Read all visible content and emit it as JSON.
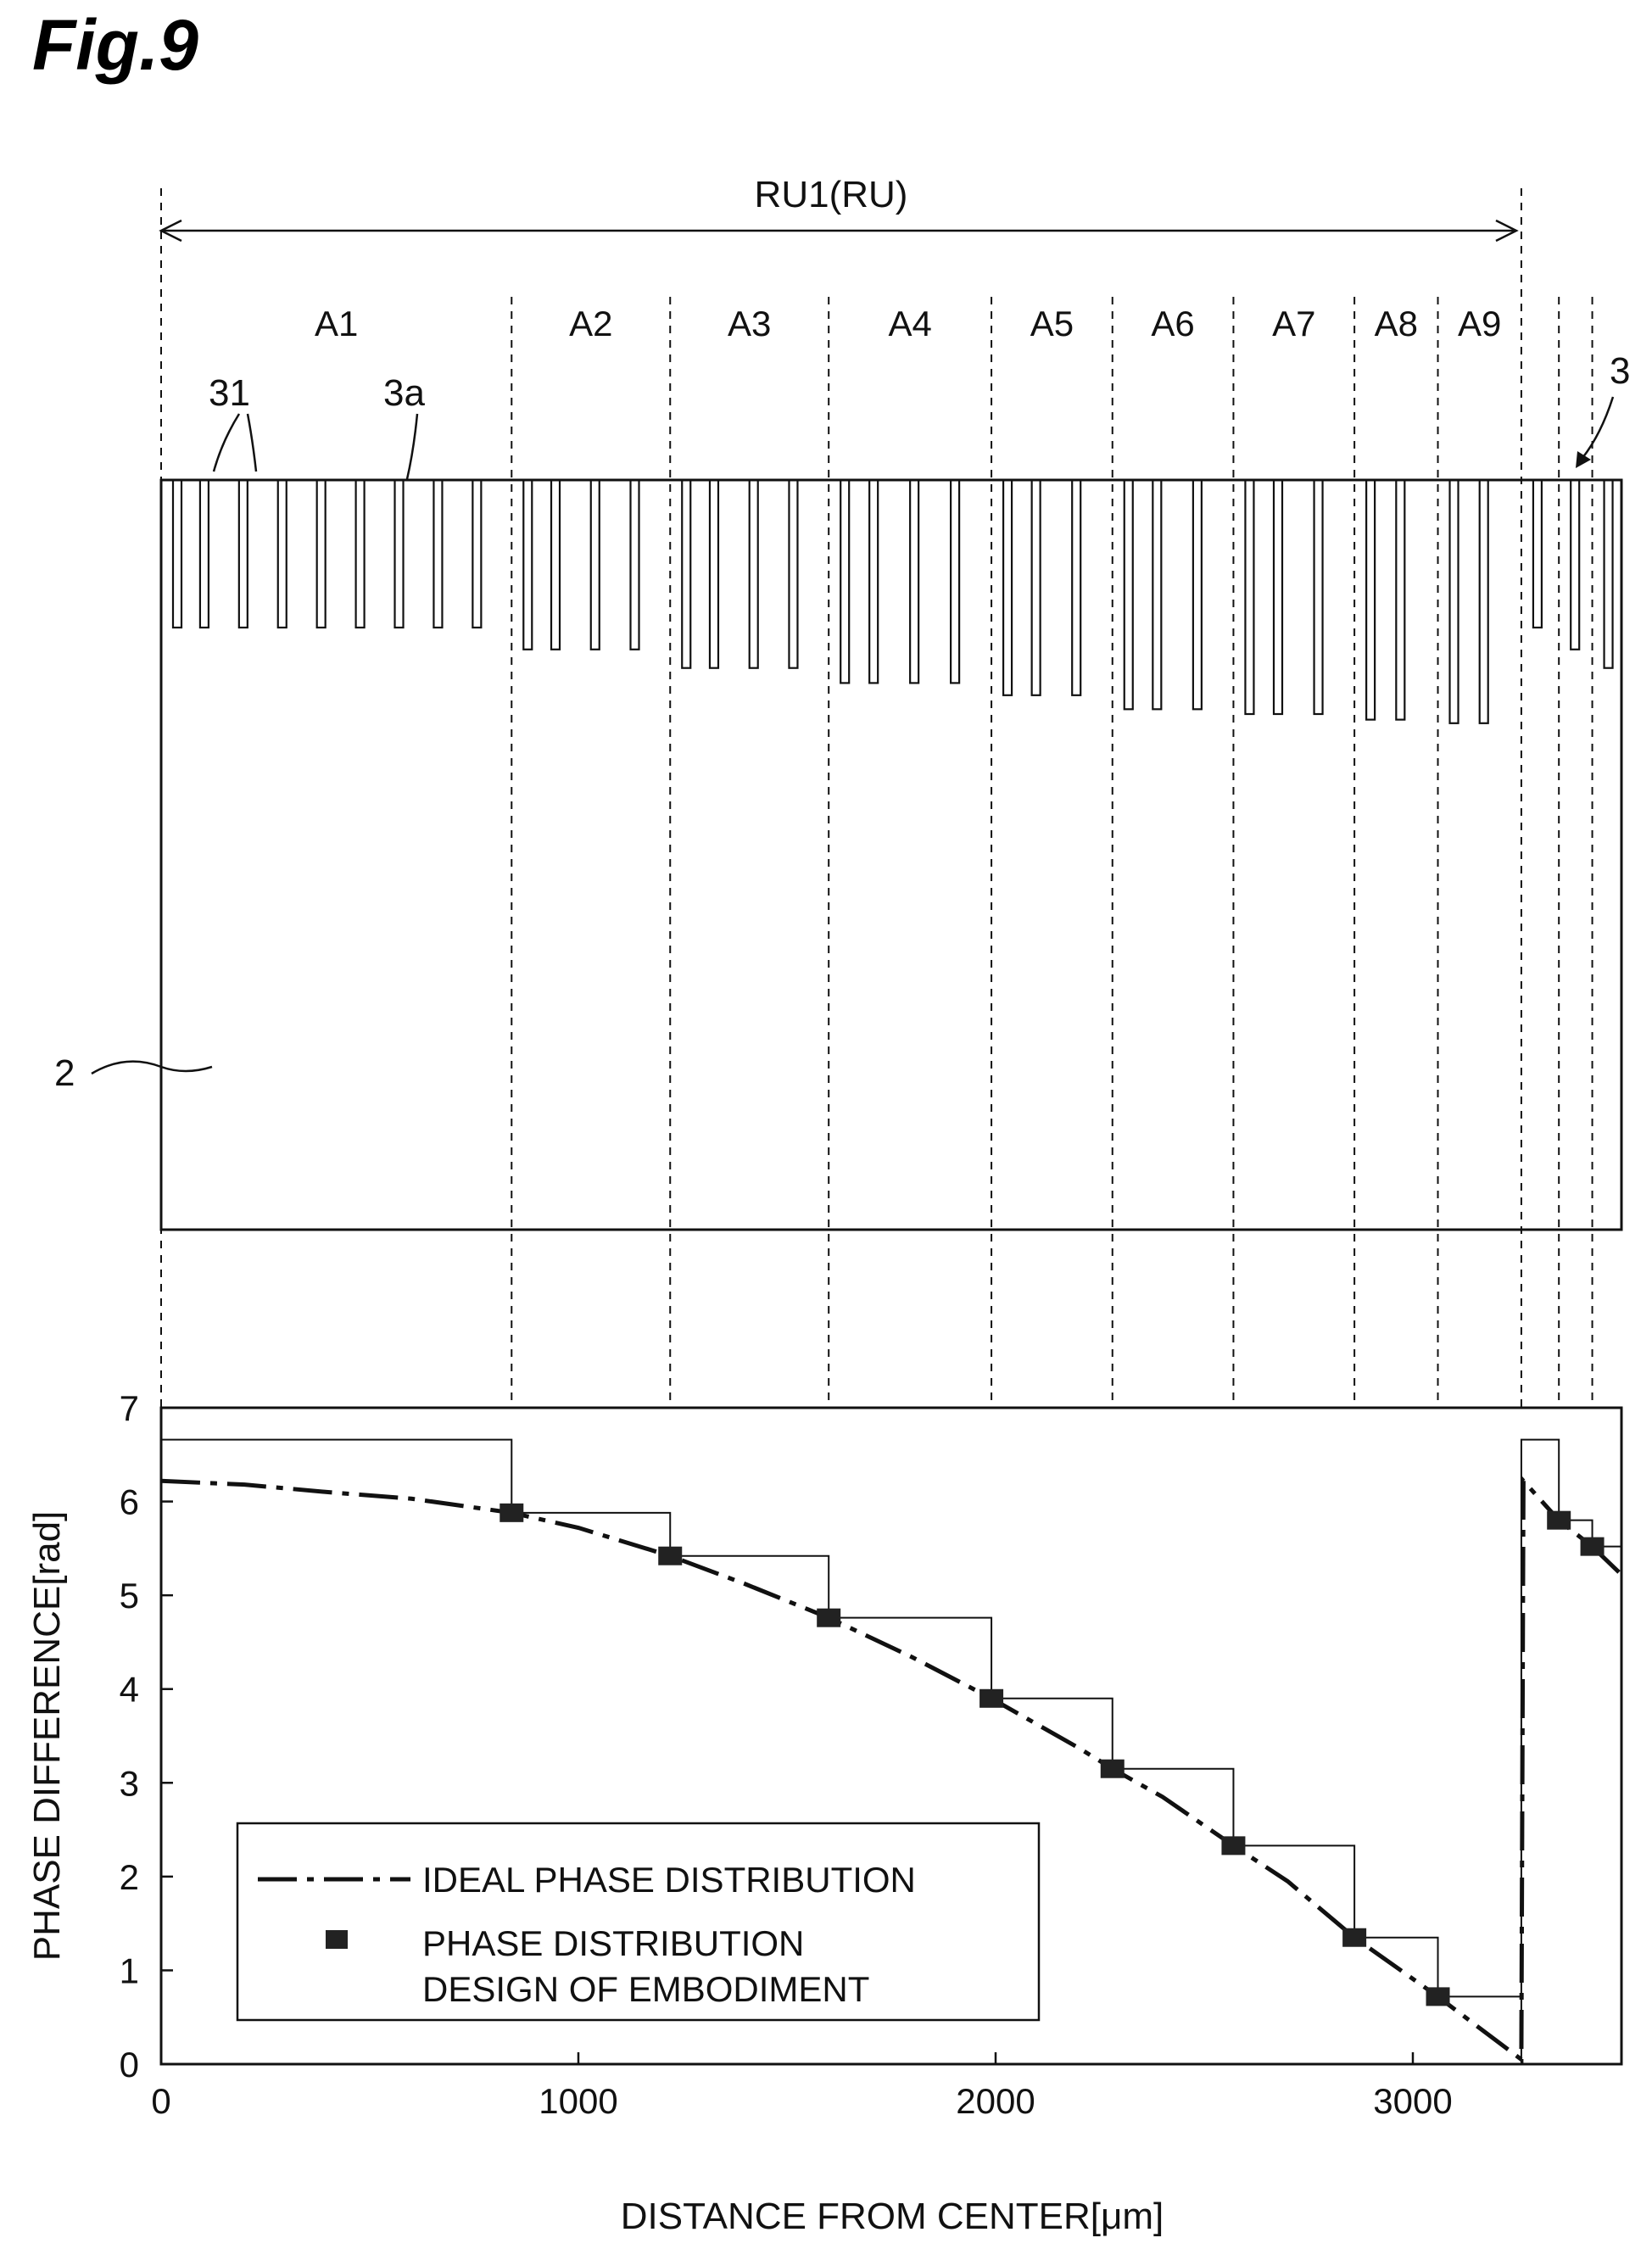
{
  "figure": {
    "title": "Fig.9",
    "unit_label": "RU1(RU)",
    "ref_31": "31",
    "ref_3a": "3a",
    "ref_3": "3",
    "ref_2": "2"
  },
  "areas": [
    {
      "label": "A1",
      "x_start": 0,
      "x_end": 840,
      "pillar_depth": 5.8
    },
    {
      "label": "A2",
      "x_start": 840,
      "x_end": 1220,
      "pillar_depth": 6.66
    },
    {
      "label": "A3",
      "x_start": 1220,
      "x_end": 1600,
      "pillar_depth": 7.39
    },
    {
      "label": "A4",
      "x_start": 1600,
      "x_end": 1990,
      "pillar_depth": 7.98
    },
    {
      "label": "A5",
      "x_start": 1990,
      "x_end": 2280,
      "pillar_depth": 8.46
    },
    {
      "label": "A6",
      "x_start": 2280,
      "x_end": 2570,
      "pillar_depth": 9.01
    },
    {
      "label": "A7",
      "x_start": 2570,
      "x_end": 2860,
      "pillar_depth": 9.2
    },
    {
      "label": "A8",
      "x_start": 2860,
      "x_end": 3060,
      "pillar_depth": 9.42
    },
    {
      "label": "A9",
      "x_start": 3060,
      "x_end": 3260,
      "pillar_depth": 9.56
    }
  ],
  "next_unit_pillar_depths": [
    5.8,
    6.66,
    7.39
  ],
  "chart_data": {
    "type": "line",
    "xlabel": "DISTANCE FROM CENTER[μm]",
    "ylabel": "PHASE DIFFERENCE[rad]",
    "xlim": [
      0,
      3500
    ],
    "ylim": [
      0,
      7
    ],
    "xticks": [
      0,
      1000,
      2000,
      3000
    ],
    "yticks": [
      0,
      1,
      2,
      3,
      4,
      5,
      6,
      7
    ],
    "legend_position": "bottom-left",
    "series": [
      {
        "name": "IDEAL PHASE DISTRIBUTION",
        "style": "dash-dot",
        "x": [
          0,
          200,
          400,
          600,
          840,
          1000,
          1220,
          1400,
          1600,
          1800,
          1990,
          2200,
          2280,
          2400,
          2570,
          2700,
          2860,
          3060,
          3260,
          3265,
          3350,
          3430,
          3500
        ],
        "y": [
          6.22,
          6.18,
          6.1,
          6.03,
          5.88,
          5.72,
          5.42,
          5.12,
          4.76,
          4.34,
          3.9,
          3.37,
          3.15,
          2.85,
          2.33,
          1.95,
          1.35,
          0.72,
          0.05,
          6.22,
          5.8,
          5.52,
          5.22
        ]
      },
      {
        "name": "PHASE DISTRIBUTION DESIGN OF EMBODIMENT",
        "style": "square-markers",
        "x": [
          840,
          1220,
          1600,
          1990,
          2280,
          2570,
          2860,
          3060,
          3350,
          3430
        ],
        "y": [
          5.88,
          5.42,
          4.76,
          3.9,
          3.15,
          2.33,
          1.35,
          0.72,
          5.8,
          5.52
        ]
      }
    ],
    "design_steps": {
      "edges": [
        0,
        840,
        1220,
        1600,
        1990,
        2280,
        2570,
        2860,
        3060,
        3260,
        3350,
        3430,
        3500
      ],
      "levels": [
        6.66,
        5.88,
        5.42,
        4.76,
        3.9,
        3.15,
        2.33,
        1.35,
        0.72,
        6.66,
        5.8,
        5.52
      ]
    }
  }
}
